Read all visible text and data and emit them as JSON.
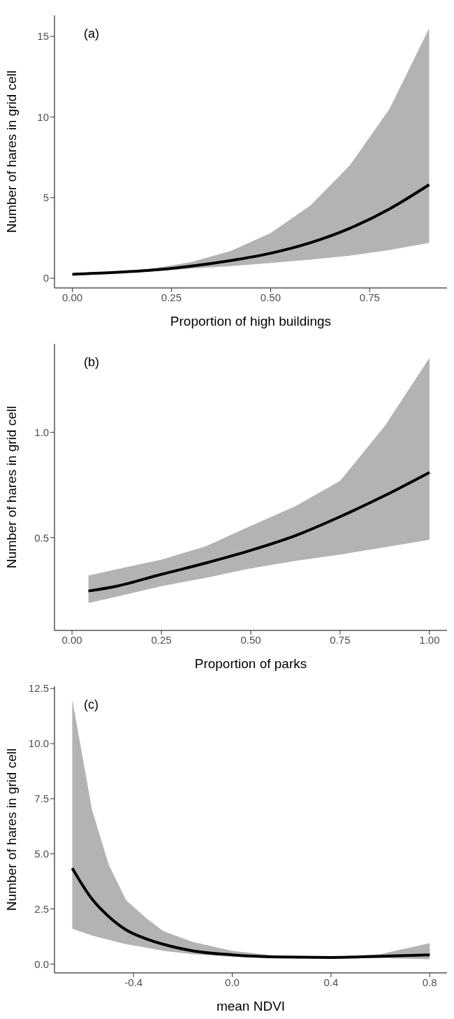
{
  "chart_data": [
    {
      "type": "line",
      "xlabel": "Proportion of high buildings",
      "ylabel": "Number of hares in grid cell",
      "annotations": [
        "(a)"
      ],
      "x": [
        0,
        0.1,
        0.2,
        0.3,
        0.4,
        0.5,
        0.6,
        0.7,
        0.8,
        0.9
      ],
      "series": [
        {
          "color": "#000000",
          "values": [
            0.25,
            0.35,
            0.5,
            0.75,
            1.1,
            1.55,
            2.2,
            3.1,
            4.3,
            5.8
          ],
          "lower": [
            0.23,
            0.32,
            0.45,
            0.6,
            0.75,
            0.95,
            1.15,
            1.4,
            1.75,
            2.2
          ],
          "upper": [
            0.27,
            0.4,
            0.6,
            1.0,
            1.7,
            2.8,
            4.5,
            7.0,
            10.5,
            15.5
          ]
        }
      ],
      "xlim": [
        -0.045,
        0.945
      ],
      "ylim": [
        -0.6,
        16.3
      ],
      "xticks": [
        {
          "value": 0,
          "label": "0.00"
        },
        0.25,
        {
          "value": 0.5,
          "label": "0.50"
        },
        0.75
      ],
      "yticks": [
        0,
        5,
        10,
        15
      ]
    },
    {
      "type": "line",
      "xlabel": "Proportion of parks",
      "ylabel": "Number of hares in grid cell",
      "annotations": [
        "(b)"
      ],
      "x": [
        0.046,
        0.125,
        0.25,
        0.375,
        0.5,
        0.625,
        0.75,
        0.875,
        1.0
      ],
      "series": [
        {
          "color": "#000000",
          "values": [
            0.247,
            0.27,
            0.326,
            0.38,
            0.44,
            0.51,
            0.6,
            0.7,
            0.81
          ],
          "lower": [
            0.19,
            0.22,
            0.27,
            0.31,
            0.354,
            0.39,
            0.42,
            0.455,
            0.49
          ],
          "upper": [
            0.32,
            0.35,
            0.396,
            0.46,
            0.556,
            0.65,
            0.77,
            1.03,
            1.354
          ]
        }
      ],
      "xlim": [
        -0.049,
        1.049
      ],
      "ylim": [
        0.06,
        1.42
      ],
      "xticks": [
        {
          "value": 0,
          "label": "0.00"
        },
        0.25,
        {
          "value": 0.5,
          "label": "0.50"
        },
        0.75,
        {
          "value": 1,
          "label": "1.00"
        }
      ],
      "yticks": [
        0.5,
        {
          "value": 1,
          "label": "1.0"
        }
      ]
    },
    {
      "type": "line",
      "xlabel": "mean NDVI",
      "ylabel": "Number of hares in grid cell",
      "annotations": [
        "(c)"
      ],
      "x": [
        -0.648,
        -0.568,
        -0.5,
        -0.43,
        -0.35,
        -0.28,
        -0.16,
        0,
        0.2,
        0.4,
        0.6,
        0.8
      ],
      "series": [
        {
          "color": "#000000",
          "values": [
            4.35,
            2.95,
            2.15,
            1.55,
            1.15,
            0.9,
            0.6,
            0.42,
            0.32,
            0.3,
            0.35,
            0.42
          ],
          "lower": [
            1.6,
            1.3,
            1.1,
            0.9,
            0.75,
            0.6,
            0.45,
            0.33,
            0.28,
            0.27,
            0.27,
            0.22
          ],
          "upper": [
            12.0,
            7.0,
            4.5,
            2.9,
            2.1,
            1.5,
            1.0,
            0.6,
            0.35,
            0.3,
            0.45,
            0.95
          ]
        }
      ],
      "xlim": [
        -0.72,
        0.87
      ],
      "ylim": [
        -0.4,
        12.6
      ],
      "xticks": [
        -0.4,
        {
          "value": 0,
          "label": "0.0"
        },
        0.4,
        0.8
      ],
      "yticks": [
        {
          "value": 0,
          "label": "0.0"
        },
        2.5,
        {
          "value": 5,
          "label": "5.0"
        },
        7.5,
        {
          "value": 10,
          "label": "10.0"
        },
        12.5
      ]
    }
  ]
}
